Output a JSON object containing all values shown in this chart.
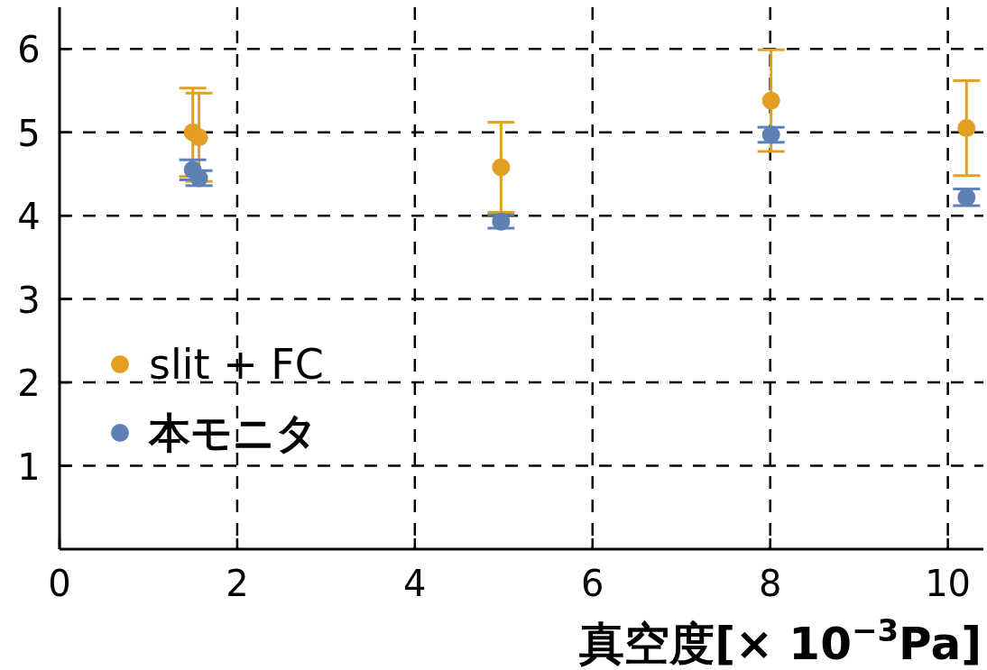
{
  "chart_data": {
    "type": "scatter",
    "xlabel": "真空度[× 10$^{−3}$Pa]",
    "xlim": [
      0,
      10.4
    ],
    "ylim": [
      0,
      6.5
    ],
    "xticks": [
      0,
      2,
      4,
      6,
      8,
      10
    ],
    "yticks": [
      1,
      2,
      3,
      4,
      5,
      6
    ],
    "grid": true,
    "legend": "left",
    "marker": "circle",
    "series": [
      {
        "name": "slit + FC",
        "color": "#e29f22",
        "x": [
          1.5,
          1.57,
          4.97,
          8.01,
          10.21
        ],
        "values": [
          5.0,
          4.94,
          4.58,
          5.38,
          5.05
        ],
        "errors": [
          0.53,
          0.53,
          0.54,
          0.61,
          0.57
        ]
      },
      {
        "name": "本モニタ",
        "color": "#5e81b5",
        "x": [
          1.5,
          1.57,
          4.97,
          8.01,
          10.21
        ],
        "values": [
          4.55,
          4.45,
          3.93,
          4.97,
          4.22
        ],
        "errors": [
          0.12,
          0.09,
          0.08,
          0.09,
          0.1
        ]
      }
    ]
  }
}
